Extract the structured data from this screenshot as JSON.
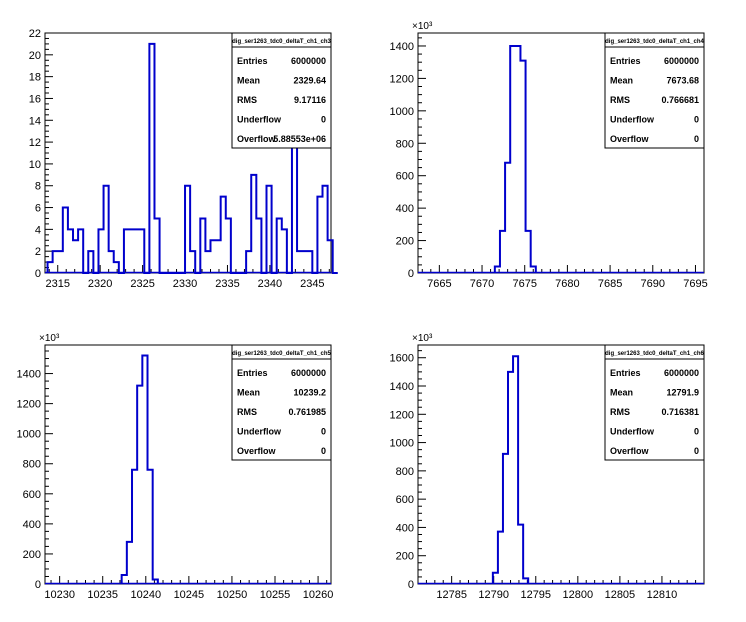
{
  "chart_data": [
    {
      "type": "bar",
      "title": "dig_ser1263_tdc0_deltaT_ch1_ch3",
      "stats": [
        {
          "label": "Entries",
          "value": "6000000"
        },
        {
          "label": "Mean",
          "value": "2329.64"
        },
        {
          "label": "RMS",
          "value": "9.17116"
        },
        {
          "label": "Underflow",
          "value": "0"
        },
        {
          "label": "Overflow",
          "value": "5.88553e+06"
        }
      ],
      "multiplier": "",
      "xlim": [
        2313.5,
        2347.2
      ],
      "ylim": [
        0,
        22
      ],
      "xticks": [
        2315,
        2320,
        2325,
        2330,
        2335,
        2340,
        2345
      ],
      "yticks": [
        0,
        2,
        4,
        6,
        8,
        10,
        12,
        14,
        16,
        18,
        20,
        22
      ],
      "bin_start": 2313.8,
      "bin_width": 0.6,
      "values": [
        1,
        2,
        2,
        6,
        4,
        3,
        4,
        0,
        2,
        0,
        4,
        8,
        2,
        1,
        0,
        4,
        4,
        4,
        4,
        0,
        21,
        5,
        0,
        0,
        0,
        0,
        0,
        8,
        2,
        0,
        5,
        2,
        3,
        3,
        7,
        5,
        0,
        0,
        0,
        2,
        9,
        5,
        0,
        8,
        0,
        5,
        4,
        0,
        12,
        2,
        2,
        2,
        0,
        7,
        8,
        3,
        0
      ]
    },
    {
      "type": "bar",
      "title": "dig_ser1263_tdc0_deltaT_ch1_ch4",
      "stats": [
        {
          "label": "Entries",
          "value": "6000000"
        },
        {
          "label": "Mean",
          "value": "7673.68"
        },
        {
          "label": "RMS",
          "value": "0.766681"
        },
        {
          "label": "Underflow",
          "value": "0"
        },
        {
          "label": "Overflow",
          "value": "0"
        }
      ],
      "multiplier": "×10³",
      "xlim": [
        7662.5,
        7696
      ],
      "ylim": [
        0,
        1480
      ],
      "xticks": [
        7665,
        7670,
        7675,
        7680,
        7685,
        7690,
        7695
      ],
      "yticks": [
        0,
        200,
        400,
        600,
        800,
        1000,
        1200,
        1400
      ],
      "bin_start": 7671.5,
      "bin_width": 0.6,
      "values": [
        40,
        260,
        680,
        1400,
        1400,
        1310,
        260,
        40
      ]
    },
    {
      "type": "bar",
      "title": "dig_ser1263_tdc0_deltaT_ch1_ch5",
      "stats": [
        {
          "label": "Entries",
          "value": "6000000"
        },
        {
          "label": "Mean",
          "value": "10239.2"
        },
        {
          "label": "RMS",
          "value": "0.761985"
        },
        {
          "label": "Underflow",
          "value": "0"
        },
        {
          "label": "Overflow",
          "value": "0"
        }
      ],
      "multiplier": "×10³",
      "xlim": [
        10228.3,
        10261.5
      ],
      "ylim": [
        0,
        1590
      ],
      "xticks": [
        10230,
        10235,
        10240,
        10245,
        10250,
        10255,
        10260
      ],
      "yticks": [
        0,
        200,
        400,
        600,
        800,
        1000,
        1200,
        1400
      ],
      "bin_start": 10237.2,
      "bin_width": 0.6,
      "values": [
        60,
        280,
        760,
        1320,
        1520,
        760,
        30
      ]
    },
    {
      "type": "bar",
      "title": "dig_ser1263_tdc0_deltaT_ch1_ch6",
      "stats": [
        {
          "label": "Entries",
          "value": "6000000"
        },
        {
          "label": "Mean",
          "value": "12791.9"
        },
        {
          "label": "RMS",
          "value": "0.716381"
        },
        {
          "label": "Underflow",
          "value": "0"
        },
        {
          "label": "Overflow",
          "value": "0"
        }
      ],
      "multiplier": "×10³",
      "xlim": [
        12781,
        12815
      ],
      "ylim": [
        0,
        1690
      ],
      "xticks": [
        12785,
        12790,
        12795,
        12800,
        12805,
        12810
      ],
      "yticks": [
        0,
        200,
        400,
        600,
        800,
        1000,
        1200,
        1400,
        1600
      ],
      "bin_start": 12789.9,
      "bin_width": 0.6,
      "values": [
        80,
        370,
        920,
        1500,
        1610,
        420,
        40
      ]
    }
  ]
}
